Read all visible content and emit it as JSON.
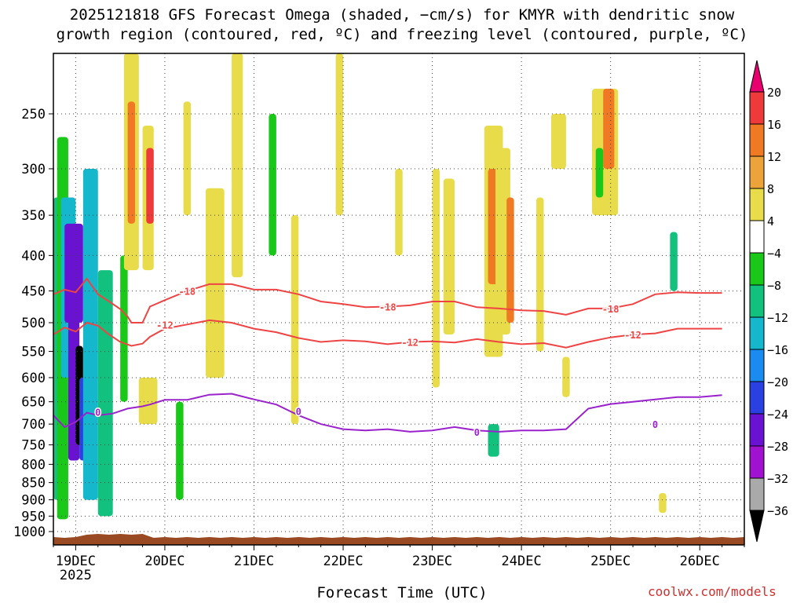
{
  "title_line1": "2025121818 GFS Forecast Omega (shaded, −cm/s) for KMYR with dendritic snow",
  "title_line2": "growth region (contoured, red, ºC) and freezing level (contoured, purple, ºC)",
  "credit": "coolwx.com/models",
  "chart_data": {
    "type": "heatmap",
    "title": "2025121818 GFS Forecast Omega (shaded, −cm/s) for KMYR with dendritic snow growth region (contoured, red, ºC) and freezing level (contoured, purple, ºC)",
    "xlabel": "Forecast Time (UTC)",
    "ylabel": "",
    "y_scale": "log-pressure",
    "y_reversed": true,
    "yticks": [
      "250",
      "300",
      "350",
      "400",
      "450",
      "500",
      "550",
      "600",
      "650",
      "700",
      "750",
      "800",
      "850",
      "900",
      "950",
      "1000"
    ],
    "xticks": [
      {
        "label": "19DEC",
        "sub": "2025"
      },
      {
        "label": "20DEC",
        "sub": ""
      },
      {
        "label": "21DEC",
        "sub": ""
      },
      {
        "label": "22DEC",
        "sub": ""
      },
      {
        "label": "23DEC",
        "sub": ""
      },
      {
        "label": "24DEC",
        "sub": ""
      },
      {
        "label": "25DEC",
        "sub": ""
      },
      {
        "label": "26DEC",
        "sub": ""
      }
    ],
    "x_range_hours": [
      -6,
      180
    ],
    "grid": true,
    "colorbar": {
      "labels": [
        "20",
        "16",
        "12",
        "8",
        "4",
        "−4",
        "−8",
        "−12",
        "−16",
        "−20",
        "−24",
        "−28",
        "−32",
        "−36"
      ],
      "colors": [
        "#ff3366",
        "#ee3a3a",
        "#f07a23",
        "#eba33a",
        "#e8dc4a",
        "#ffffff",
        "#19c819",
        "#13c17f",
        "#14b7cb",
        "#1a8cef",
        "#2a40e0",
        "#6a12d2",
        "#a012d0",
        "#aaaaaa"
      ],
      "top_color": "#e8006f",
      "bottom_color": "#000000"
    },
    "contours": [
      {
        "color": "#ee4444",
        "label": "-18",
        "points": [
          [
            -6,
            455
          ],
          [
            -3,
            448
          ],
          [
            0,
            452
          ],
          [
            3,
            432
          ],
          [
            6,
            455
          ],
          [
            9,
            466
          ],
          [
            12,
            478
          ],
          [
            14,
            490
          ],
          [
            15,
            500
          ],
          [
            18,
            500
          ],
          [
            20,
            474
          ],
          [
            24,
            464
          ],
          [
            30,
            450
          ],
          [
            36,
            440
          ],
          [
            42,
            440
          ],
          [
            48,
            448
          ],
          [
            54,
            448
          ],
          [
            60,
            455
          ],
          [
            66,
            466
          ],
          [
            72,
            470
          ],
          [
            78,
            475
          ],
          [
            84,
            474
          ],
          [
            90,
            472
          ],
          [
            96,
            466
          ],
          [
            102,
            466
          ],
          [
            108,
            475
          ],
          [
            114,
            477
          ],
          [
            120,
            480
          ],
          [
            126,
            481
          ],
          [
            132,
            487
          ],
          [
            138,
            477
          ],
          [
            144,
            477
          ],
          [
            150,
            470
          ],
          [
            156,
            455
          ],
          [
            162,
            452
          ],
          [
            168,
            453
          ],
          [
            174,
            453
          ]
        ]
      },
      {
        "color": "#ee4444",
        "label": "-12",
        "points": [
          [
            -6,
            520
          ],
          [
            -3,
            508
          ],
          [
            0,
            515
          ],
          [
            3,
            500
          ],
          [
            6,
            505
          ],
          [
            9,
            520
          ],
          [
            12,
            533
          ],
          [
            15,
            540
          ],
          [
            18,
            536
          ],
          [
            20,
            524
          ],
          [
            24,
            510
          ],
          [
            30,
            503
          ],
          [
            36,
            496
          ],
          [
            42,
            500
          ],
          [
            48,
            510
          ],
          [
            54,
            516
          ],
          [
            60,
            526
          ],
          [
            66,
            533
          ],
          [
            72,
            530
          ],
          [
            78,
            532
          ],
          [
            84,
            537
          ],
          [
            90,
            533
          ],
          [
            96,
            532
          ],
          [
            102,
            534
          ],
          [
            108,
            528
          ],
          [
            114,
            533
          ],
          [
            120,
            537
          ],
          [
            126,
            535
          ],
          [
            132,
            543
          ],
          [
            138,
            533
          ],
          [
            144,
            525
          ],
          [
            150,
            520
          ],
          [
            156,
            518
          ],
          [
            162,
            510
          ],
          [
            168,
            510
          ],
          [
            174,
            510
          ]
        ]
      },
      {
        "color": "#9a22cc",
        "label": "0",
        "points": [
          [
            -6,
            680
          ],
          [
            -3,
            707
          ],
          [
            0,
            695
          ],
          [
            3,
            674
          ],
          [
            6,
            680
          ],
          [
            10,
            676
          ],
          [
            14,
            665
          ],
          [
            18,
            660
          ],
          [
            20,
            656
          ],
          [
            24,
            646
          ],
          [
            30,
            646
          ],
          [
            36,
            635
          ],
          [
            42,
            633
          ],
          [
            48,
            645
          ],
          [
            54,
            656
          ],
          [
            60,
            680
          ],
          [
            66,
            700
          ],
          [
            72,
            712
          ],
          [
            78,
            715
          ],
          [
            84,
            712
          ],
          [
            90,
            718
          ],
          [
            96,
            715
          ],
          [
            102,
            707
          ],
          [
            108,
            715
          ],
          [
            114,
            718
          ],
          [
            120,
            715
          ],
          [
            126,
            715
          ],
          [
            132,
            712
          ],
          [
            138,
            665
          ],
          [
            144,
            655
          ],
          [
            150,
            650
          ],
          [
            156,
            645
          ],
          [
            162,
            640
          ],
          [
            168,
            640
          ],
          [
            174,
            636
          ]
        ]
      }
    ],
    "contour_label_positions": [
      {
        "label": "-18",
        "x": 30,
        "y": 450
      },
      {
        "label": "-18",
        "x": 84,
        "y": 474
      },
      {
        "label": "-18",
        "x": 144,
        "y": 477
      },
      {
        "label": "-12",
        "x": 24,
        "y": 503
      },
      {
        "label": "-12",
        "x": 90,
        "y": 533
      },
      {
        "label": "-12",
        "x": 150,
        "y": 520
      },
      {
        "label": "0",
        "x": 6,
        "y": 672
      },
      {
        "label": "0",
        "x": 60,
        "y": 670
      },
      {
        "label": "0",
        "x": 108,
        "y": 718
      },
      {
        "label": "0",
        "x": 156,
        "y": 700
      }
    ],
    "omega_cells": [
      {
        "x": [
          -6,
          -3
        ],
        "p": [
          330,
          900
        ],
        "v": -10
      },
      {
        "x": [
          -5,
          -2
        ],
        "p": [
          270,
          960
        ],
        "v": -6
      },
      {
        "x": [
          -4,
          0
        ],
        "p": [
          330,
          600
        ],
        "v": -14
      },
      {
        "x": [
          -3,
          2
        ],
        "p": [
          360,
          500
        ],
        "v": -26
      },
      {
        "x": [
          -2,
          1
        ],
        "p": [
          430,
          790
        ],
        "v": -24
      },
      {
        "x": [
          0,
          2
        ],
        "p": [
          540,
          750
        ],
        "v": -37
      },
      {
        "x": [
          1,
          5
        ],
        "p": [
          600,
          790
        ],
        "v": -22
      },
      {
        "x": [
          2,
          6
        ],
        "p": [
          300,
          900
        ],
        "v": -12
      },
      {
        "x": [
          6,
          10
        ],
        "p": [
          420,
          950
        ],
        "v": -8
      },
      {
        "x": [
          12,
          14
        ],
        "p": [
          400,
          650
        ],
        "v": -6
      },
      {
        "x": [
          13,
          17
        ],
        "p": [
          200,
          420
        ],
        "v": 6
      },
      {
        "x": [
          14,
          16
        ],
        "p": [
          240,
          360
        ],
        "v": 12
      },
      {
        "x": [
          18,
          21
        ],
        "p": [
          260,
          420
        ],
        "v": 6
      },
      {
        "x": [
          19,
          21
        ],
        "p": [
          280,
          360
        ],
        "v": 17
      },
      {
        "x": [
          17,
          22
        ],
        "p": [
          600,
          700
        ],
        "v": 6
      },
      {
        "x": [
          27,
          29
        ],
        "p": [
          650,
          900
        ],
        "v": -6
      },
      {
        "x": [
          29,
          31
        ],
        "p": [
          240,
          350
        ],
        "v": 6
      },
      {
        "x": [
          35,
          40
        ],
        "p": [
          320,
          600
        ],
        "v": 6
      },
      {
        "x": [
          42,
          45
        ],
        "p": [
          200,
          430
        ],
        "v": 6
      },
      {
        "x": [
          52,
          54
        ],
        "p": [
          250,
          400
        ],
        "v": -6
      },
      {
        "x": [
          58,
          60
        ],
        "p": [
          350,
          700
        ],
        "v": 6
      },
      {
        "x": [
          70,
          72
        ],
        "p": [
          200,
          350
        ],
        "v": 6
      },
      {
        "x": [
          86,
          88
        ],
        "p": [
          300,
          400
        ],
        "v": 6
      },
      {
        "x": [
          96,
          98
        ],
        "p": [
          300,
          620
        ],
        "v": 6
      },
      {
        "x": [
          99,
          102
        ],
        "p": [
          310,
          520
        ],
        "v": 6
      },
      {
        "x": [
          110,
          115
        ],
        "p": [
          260,
          560
        ],
        "v": 6
      },
      {
        "x": [
          111,
          114
        ],
        "p": [
          300,
          440
        ],
        "v": 12
      },
      {
        "x": [
          113,
          117
        ],
        "p": [
          280,
          520
        ],
        "v": 6
      },
      {
        "x": [
          116,
          118
        ],
        "p": [
          330,
          500
        ],
        "v": 12
      },
      {
        "x": [
          124,
          126
        ],
        "p": [
          330,
          550
        ],
        "v": 6
      },
      {
        "x": [
          128,
          132
        ],
        "p": [
          250,
          300
        ],
        "v": 6
      },
      {
        "x": [
          131,
          133
        ],
        "p": [
          560,
          640
        ],
        "v": 6
      },
      {
        "x": [
          139,
          146
        ],
        "p": [
          230,
          350
        ],
        "v": 6
      },
      {
        "x": [
          142,
          145
        ],
        "p": [
          230,
          300
        ],
        "v": 12
      },
      {
        "x": [
          140,
          142
        ],
        "p": [
          280,
          330
        ],
        "v": -6
      },
      {
        "x": [
          160,
          162
        ],
        "p": [
          370,
          450
        ],
        "v": -8
      },
      {
        "x": [
          157,
          159
        ],
        "p": [
          880,
          940
        ],
        "v": 6
      },
      {
        "x": [
          111,
          114
        ],
        "p": [
          700,
          780
        ],
        "v": -8
      }
    ]
  }
}
